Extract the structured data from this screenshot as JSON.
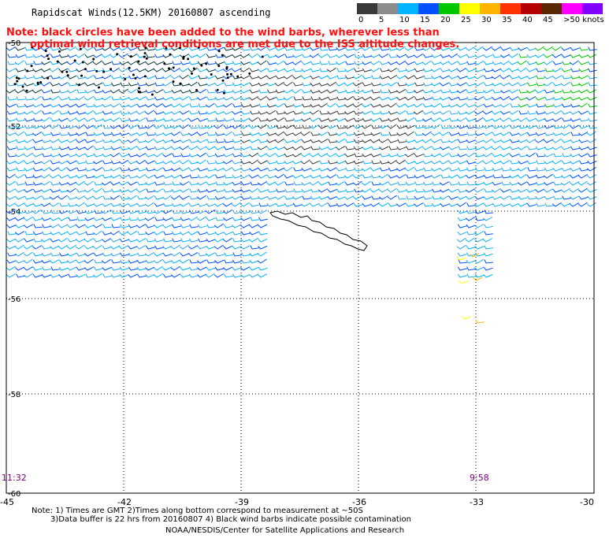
{
  "title": "Rapidscat Winds(12.5KM) 20160807 ascending",
  "note_line1": "Note: black circles have been added to the wind barbs, wherever less than",
  "note_line2": "optimal wind retrieval conditions are met due to the ISS altitude changes.",
  "legend": {
    "colors": [
      "#3a3a3a",
      "#8c8c8c",
      "#00b4ff",
      "#0050ff",
      "#00c800",
      "#ffff00",
      "#ffb400",
      "#ff3200",
      "#b40000",
      "#5a2800",
      "#ff00ff",
      "#8200ff"
    ],
    "labels": [
      "0",
      "5",
      "10",
      "15",
      "20",
      "25",
      "30",
      "35",
      "40",
      "45",
      ">50 knots"
    ]
  },
  "axes": {
    "x_ticks": [
      "-45",
      "-42",
      "-39",
      "-36",
      "-33",
      "-30"
    ],
    "y_ticks": [
      "-50",
      "-52",
      "-54",
      "-56",
      "-58",
      "-60"
    ]
  },
  "time_labels": {
    "left": "11:32",
    "right": "9:58"
  },
  "footer": {
    "line1": "Note: 1) Times are GMT 2)Times along bottom correspond to measurement at ~50S",
    "line2": "3)Data buffer is 22 hrs from 20160807 4) Black wind barbs indicate possible contamination",
    "line3": "NOAA/NESDIS/Center for Satellite Applications and Research"
  }
}
